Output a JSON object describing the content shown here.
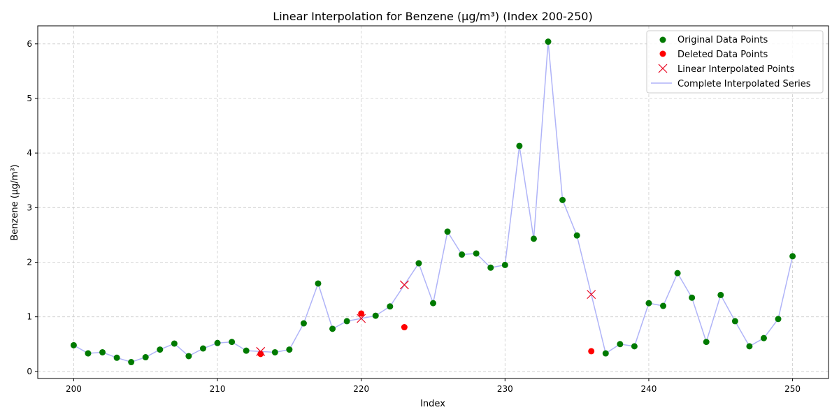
{
  "chart_data": {
    "type": "line",
    "title": "Linear Interpolation for Benzene (µg/m³) (Index 200-250)",
    "xlabel": "Index",
    "ylabel": "Benzene (µg/m³)",
    "xlim": [
      197.5,
      252.5
    ],
    "ylim": [
      -0.13,
      6.33
    ],
    "xticks": [
      200,
      210,
      220,
      230,
      240,
      250
    ],
    "yticks": [
      0,
      1,
      2,
      3,
      4,
      5,
      6
    ],
    "grid": true,
    "legend_position": "upper right",
    "colors": {
      "original": "#007a00",
      "deleted": "#ff0000",
      "interpolated_marker": "#e8001c",
      "line": "#b0b4f8"
    },
    "series": [
      {
        "name": "Original Data Points",
        "marker": "circle",
        "x": [
          200,
          201,
          202,
          203,
          204,
          205,
          206,
          207,
          208,
          209,
          210,
          211,
          212,
          214,
          215,
          216,
          217,
          218,
          219,
          221,
          222,
          224,
          225,
          226,
          227,
          228,
          229,
          230,
          231,
          232,
          233,
          234,
          235,
          237,
          238,
          239,
          240,
          241,
          242,
          243,
          244,
          245,
          246,
          247,
          248,
          249,
          250
        ],
        "y": [
          0.48,
          0.33,
          0.35,
          0.25,
          0.17,
          0.26,
          0.4,
          0.51,
          0.28,
          0.42,
          0.52,
          0.54,
          0.38,
          0.35,
          0.4,
          0.88,
          1.61,
          0.78,
          0.92,
          1.02,
          1.19,
          1.98,
          1.25,
          2.56,
          2.14,
          2.16,
          1.9,
          1.95,
          4.13,
          2.43,
          6.04,
          3.14,
          2.49,
          0.33,
          0.5,
          0.46,
          1.25,
          1.2,
          1.8,
          1.35,
          0.54,
          1.4,
          0.92,
          0.46,
          0.61,
          0.96,
          2.11
        ]
      },
      {
        "name": "Deleted Data Points",
        "marker": "circle",
        "x": [
          213,
          220,
          223,
          236
        ],
        "y": [
          0.32,
          1.06,
          0.81,
          0.37
        ]
      },
      {
        "name": "Linear Interpolated Points",
        "marker": "x",
        "x": [
          213,
          220,
          223,
          236
        ],
        "y": [
          0.365,
          0.97,
          1.585,
          1.41
        ]
      },
      {
        "name": "Complete Interpolated Series",
        "marker": "line",
        "x": [
          200,
          201,
          202,
          203,
          204,
          205,
          206,
          207,
          208,
          209,
          210,
          211,
          212,
          213,
          214,
          215,
          216,
          217,
          218,
          219,
          220,
          221,
          222,
          223,
          224,
          225,
          226,
          227,
          228,
          229,
          230,
          231,
          232,
          233,
          234,
          235,
          236,
          237,
          238,
          239,
          240,
          241,
          242,
          243,
          244,
          245,
          246,
          247,
          248,
          249,
          250
        ],
        "y": [
          0.48,
          0.33,
          0.35,
          0.25,
          0.17,
          0.26,
          0.4,
          0.51,
          0.28,
          0.42,
          0.52,
          0.54,
          0.38,
          0.365,
          0.35,
          0.4,
          0.88,
          1.61,
          0.78,
          0.92,
          0.97,
          1.02,
          1.19,
          1.585,
          1.98,
          1.25,
          2.56,
          2.14,
          2.16,
          1.9,
          1.95,
          4.13,
          2.43,
          6.04,
          3.14,
          2.49,
          1.41,
          0.33,
          0.5,
          0.46,
          1.25,
          1.2,
          1.8,
          1.35,
          0.54,
          1.4,
          0.92,
          0.46,
          0.61,
          0.96,
          2.11
        ]
      }
    ]
  }
}
